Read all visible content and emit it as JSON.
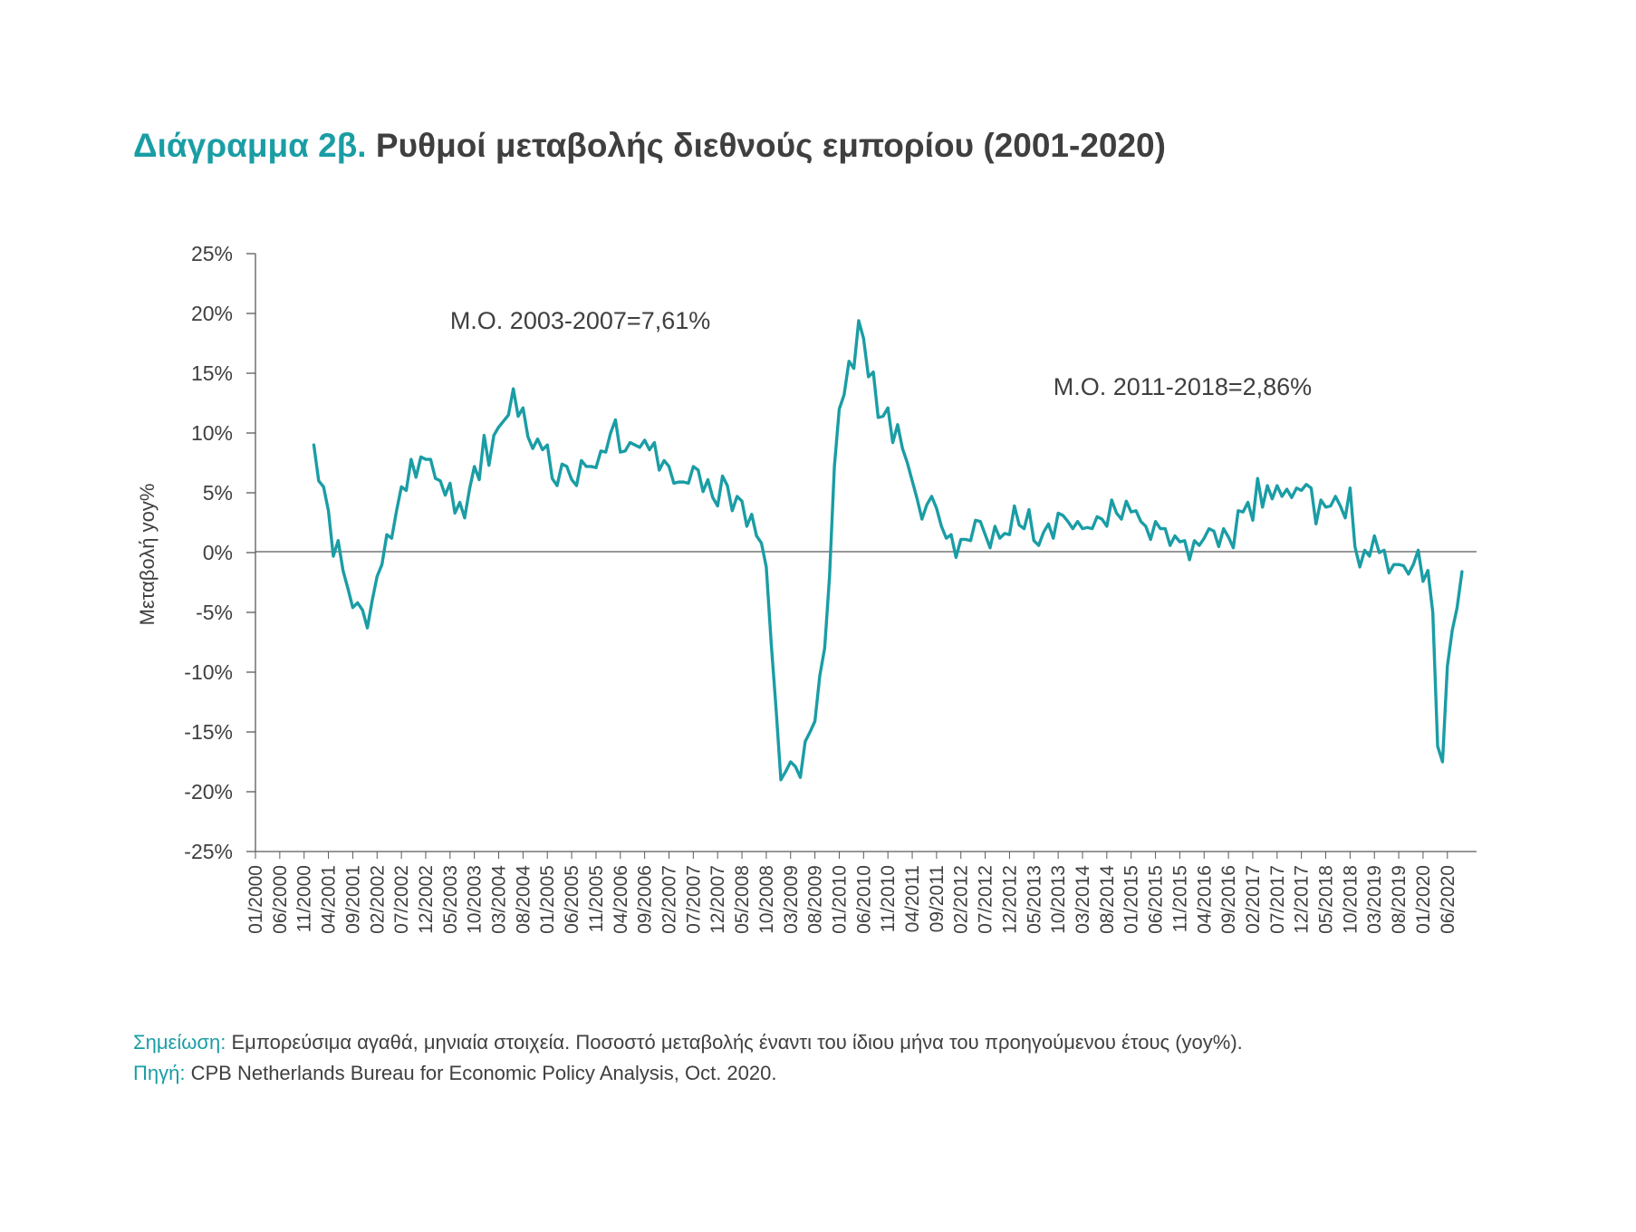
{
  "title": {
    "lead": "Διάγραμμα 2β.",
    "rest": "Ρυθμοί μεταβολής διεθνούς εμπορίου (2001-2020)"
  },
  "note": {
    "label": "Σημείωση:",
    "text": "Εμπορεύσιμα αγαθά, μηνιαία στοιχεία. Ποσοστό μεταβολής έναντι του ίδιου μήνα του προηγούμενου έτους (yoy%)."
  },
  "source": {
    "label": "Πηγή:",
    "text": "CPB Netherlands Bureau for Economic Policy Analysis, Oct. 2020."
  },
  "colors": {
    "line": "#1a9da5",
    "accent": "#1a9da5",
    "axis": "#5a5a5a"
  },
  "chart_data": {
    "type": "line",
    "title": "Ρυθμοί μεταβολής διεθνούς εμπορίου (2001-2020)",
    "xlabel": "",
    "ylabel": "Μεταβολή yoy%",
    "ylim": [
      -25,
      25
    ],
    "yticks": [
      "25%",
      "20%",
      "15%",
      "10%",
      "5%",
      "0%",
      "-5%",
      "-10%",
      "-15%",
      "-20%",
      "-25%"
    ],
    "x_start": "01/2000",
    "x_end": "12/2020",
    "xticks": [
      "01/2000",
      "06/2000",
      "11/2000",
      "04/2001",
      "09/2001",
      "02/2002",
      "07/2002",
      "12/2002",
      "05/2003",
      "10/2003",
      "03/2004",
      "08/2004",
      "01/2005",
      "06/2005",
      "11/2005",
      "04/2006",
      "09/2006",
      "02/2007",
      "07/2007",
      "12/2007",
      "05/2008",
      "10/2008",
      "03/2009",
      "08/2009",
      "01/2010",
      "06/2010",
      "11/2010",
      "04/2011",
      "09/2011",
      "02/2012",
      "07/2012",
      "12/2012",
      "05/2013",
      "10/2013",
      "03/2014",
      "08/2014",
      "01/2015",
      "06/2015",
      "11/2015",
      "04/2016",
      "09/2016",
      "02/2017",
      "07/2017",
      "12/2017",
      "05/2018",
      "10/2018",
      "03/2019",
      "08/2019",
      "01/2020",
      "06/2020"
    ],
    "grid": false,
    "annotations": [
      {
        "text": "Μ.Ο. 2003-2007=7,61%",
        "x": "05/2003",
        "y": 18.7
      },
      {
        "text": "Μ.Ο. 2011-2018=2,86%",
        "x": "09/2013",
        "y": 13.2
      }
    ],
    "series": [
      {
        "name": "",
        "start": "01/2001",
        "values": [
          9.0,
          6.0,
          5.5,
          3.5,
          -0.3,
          1.0,
          -1.5,
          -3.0,
          -4.6,
          -4.2,
          -4.8,
          -6.3,
          -4.0,
          -2.0,
          -1.0,
          1.5,
          1.2,
          3.5,
          5.5,
          5.2,
          7.8,
          6.3,
          8.0,
          7.8,
          7.8,
          6.2,
          6.0,
          4.8,
          5.8,
          3.3,
          4.2,
          2.9,
          5.3,
          7.2,
          6.1,
          9.8,
          7.3,
          9.8,
          10.5,
          11.0,
          11.5,
          13.7,
          11.4,
          12.1,
          9.7,
          8.7,
          9.5,
          8.6,
          9.0,
          6.2,
          5.6,
          7.4,
          7.2,
          6.1,
          5.6,
          7.7,
          7.2,
          7.2,
          7.1,
          8.5,
          8.4,
          10.0,
          11.1,
          8.4,
          8.5,
          9.2,
          9.0,
          8.8,
          9.4,
          8.6,
          9.2,
          6.9,
          7.7,
          7.2,
          5.8,
          5.9,
          5.9,
          5.8,
          7.2,
          6.9,
          5.1,
          6.1,
          4.6,
          3.9,
          6.4,
          5.6,
          3.5,
          4.7,
          4.3,
          2.2,
          3.2,
          1.4,
          0.8,
          -1.2,
          -7.5,
          -13.0,
          -19.0,
          -18.3,
          -17.5,
          -17.9,
          -18.8,
          -15.8,
          -15.0,
          -14.1,
          -10.3,
          -8.0,
          -2.0,
          7.2,
          12.0,
          13.2,
          16.0,
          15.4,
          19.4,
          17.9,
          14.7,
          15.1,
          11.3,
          11.4,
          12.1,
          9.2,
          10.7,
          8.7,
          7.5,
          6.0,
          4.5,
          2.8,
          4.0,
          4.7,
          3.7,
          2.2,
          1.2,
          1.5,
          -0.4,
          1.1,
          1.1,
          1.0,
          2.7,
          2.6,
          1.5,
          0.4,
          2.2,
          1.2,
          1.6,
          1.5,
          3.9,
          2.3,
          2.0,
          3.6,
          1.0,
          0.6,
          1.7,
          2.4,
          1.2,
          3.3,
          3.1,
          2.6,
          2.0,
          2.6,
          2.0,
          2.1,
          2.0,
          3.0,
          2.8,
          2.2,
          4.4,
          3.3,
          2.8,
          4.3,
          3.4,
          3.5,
          2.6,
          2.2,
          1.1,
          2.6,
          2.0,
          2.0,
          0.6,
          1.4,
          0.9,
          1.0,
          -0.6,
          1.0,
          0.6,
          1.2,
          2.0,
          1.8,
          0.5,
          2.0,
          1.3,
          0.4,
          3.5,
          3.4,
          4.2,
          2.7,
          6.2,
          3.8,
          5.6,
          4.5,
          5.6,
          4.7,
          5.3,
          4.6,
          5.4,
          5.2,
          5.7,
          5.4,
          2.4,
          4.4,
          3.8,
          3.9,
          4.7,
          3.9,
          2.9,
          5.4,
          0.5,
          -1.2,
          0.2,
          -0.3,
          1.4,
          0.0,
          0.2,
          -1.7,
          -1.0,
          -1.0,
          -1.1,
          -1.8,
          -1.0,
          0.2,
          -2.4,
          -1.5,
          -5.0,
          -16.2,
          -17.5,
          -9.5,
          -6.5,
          -4.6,
          -1.6
        ]
      }
    ]
  }
}
